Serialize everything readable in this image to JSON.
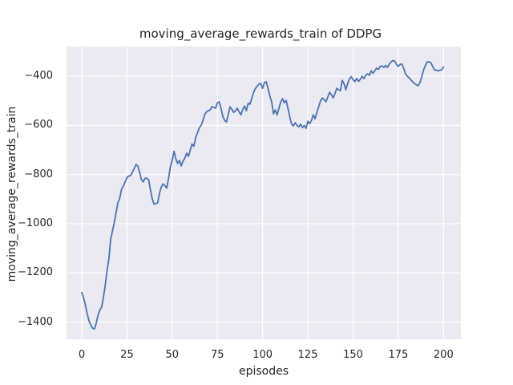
{
  "chart_data": {
    "type": "line",
    "title": "moving_average_rewards_train of DDPG",
    "xlabel": "episodes",
    "ylabel": "moving_average_rewards_train",
    "grid": true,
    "legend": null,
    "x_start": 0,
    "x_step": 1,
    "values": [
      -1280,
      -1300,
      -1330,
      -1365,
      -1395,
      -1412,
      -1425,
      -1428,
      -1405,
      -1372,
      -1352,
      -1339,
      -1300,
      -1250,
      -1190,
      -1144,
      -1062,
      -1030,
      -995,
      -955,
      -915,
      -896,
      -860,
      -847,
      -830,
      -812,
      -806,
      -804,
      -790,
      -775,
      -759,
      -765,
      -791,
      -820,
      -830,
      -815,
      -815,
      -822,
      -862,
      -900,
      -920,
      -918,
      -915,
      -875,
      -850,
      -838,
      -845,
      -855,
      -815,
      -770,
      -742,
      -705,
      -735,
      -755,
      -742,
      -765,
      -745,
      -733,
      -713,
      -726,
      -700,
      -675,
      -685,
      -650,
      -630,
      -610,
      -600,
      -580,
      -555,
      -545,
      -540,
      -537,
      -523,
      -527,
      -530,
      -508,
      -504,
      -530,
      -563,
      -580,
      -586,
      -555,
      -524,
      -535,
      -547,
      -540,
      -530,
      -545,
      -557,
      -535,
      -521,
      -540,
      -510,
      -514,
      -490,
      -465,
      -450,
      -440,
      -432,
      -429,
      -449,
      -425,
      -423,
      -450,
      -480,
      -504,
      -553,
      -537,
      -557,
      -530,
      -505,
      -491,
      -508,
      -498,
      -530,
      -565,
      -595,
      -602,
      -589,
      -600,
      -606,
      -595,
      -609,
      -600,
      -612,
      -583,
      -593,
      -580,
      -557,
      -573,
      -545,
      -524,
      -500,
      -488,
      -495,
      -504,
      -485,
      -465,
      -475,
      -488,
      -470,
      -449,
      -455,
      -459,
      -416,
      -430,
      -455,
      -430,
      -410,
      -402,
      -414,
      -422,
      -409,
      -421,
      -412,
      -400,
      -410,
      -396,
      -390,
      -396,
      -378,
      -388,
      -378,
      -367,
      -372,
      -360,
      -358,
      -364,
      -356,
      -364,
      -350,
      -342,
      -336,
      -338,
      -352,
      -360,
      -352,
      -350,
      -368,
      -390,
      -400,
      -407,
      -415,
      -423,
      -430,
      -435,
      -439,
      -425,
      -400,
      -374,
      -355,
      -342,
      -341,
      -345,
      -360,
      -374,
      -375,
      -378,
      -375,
      -374,
      -362
    ],
    "xticks": {
      "values": [
        0,
        25,
        50,
        75,
        100,
        125,
        150,
        175,
        200
      ],
      "labels": [
        "0",
        "25",
        "50",
        "75",
        "100",
        "125",
        "150",
        "175",
        "200"
      ]
    },
    "yticks": {
      "values": [
        -400,
        -600,
        -800,
        -1000,
        -1200,
        -1400
      ],
      "labels": [
        "−400",
        "−600",
        "−800",
        "−1000",
        "−1200",
        "−1400"
      ]
    },
    "xlim": [
      -8.4,
      209.6
    ],
    "ylim": [
      -1470,
      -279
    ],
    "colors": {
      "line": "#4c72b0",
      "axes_bg": "#eaeaf2",
      "grid": "#ffffff",
      "figure_bg": "#ffffff",
      "text": "#262626"
    }
  }
}
